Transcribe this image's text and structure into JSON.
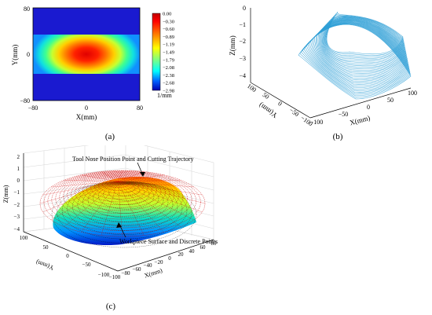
{
  "panels": {
    "a": {
      "caption": "(a)",
      "x_label": "X(mm)",
      "y_label": "Y(mm)",
      "x_ticks": [
        "−80",
        "0",
        "80"
      ],
      "y_ticks": [
        "80",
        "0",
        "−80"
      ],
      "colorbar_ticks": [
        "0.00",
        "−0.30",
        "−0.60",
        "−0.89",
        "−1.19",
        "−1.49",
        "−1.79",
        "−2.08",
        "−2.38",
        "−2.68",
        "−2.98"
      ],
      "colorbar_unit": "1/mm"
    },
    "b": {
      "caption": "(b)",
      "z_label": "Z(mm)",
      "x_label": "X(mm)",
      "y_label": "Y(mm)",
      "z_ticks": [
        "0",
        "−1",
        "−2",
        "−3",
        "−4"
      ],
      "x_ticks": [
        "−100",
        "−50",
        "0",
        "50",
        "100"
      ],
      "y_ticks": [
        "100",
        "50",
        "0",
        "−50",
        "−100"
      ]
    },
    "c": {
      "caption": "(c)",
      "z_label": "Z(mm)",
      "x_label": "X(mm)",
      "y_label": "Y(mm)",
      "z_ticks": [
        "2",
        "1",
        "0",
        "−1",
        "−2",
        "−3",
        "−4"
      ],
      "x_ticks": [
        "−100",
        "−80",
        "−60",
        "−40",
        "−20",
        "0",
        "20",
        "40",
        "60",
        "80"
      ],
      "y_ticks": [
        "100",
        "50",
        "0",
        "−50",
        "−100"
      ],
      "annotation_top": "Tool Nose Position Point and Cutting Trajectory",
      "annotation_bottom": "Workpiece Surface and Discrete Points"
    }
  },
  "colors": {
    "jet_max": "#ff0000",
    "jet_min": "#0000c0",
    "surface_line": "#2e9fd6",
    "trajectory": "#cc0000"
  },
  "chart_data": [
    {
      "type": "heatmap",
      "panel": "a",
      "xlabel": "X(mm)",
      "ylabel": "Y(mm)",
      "xlim": [
        -80,
        80
      ],
      "ylim": [
        -80,
        80
      ],
      "colorbar_range": [
        -2.98,
        0.0
      ],
      "colorbar_unit": "1/mm",
      "description_of_field": "curvature field: maximum 0.00 at center (0,0), decreasing radially to -2.98 near X=±60 across band Y in [-35, 35]; outside band blue"
    },
    {
      "type": "line",
      "panel": "b",
      "xlabel": "X(mm)",
      "ylabel": "Y(mm)",
      "zlabel": "Z(mm)",
      "xlim": [
        -100,
        100
      ],
      "ylim": [
        -100,
        100
      ],
      "zlim": [
        -4,
        0
      ]
    },
    {
      "type": "scatter",
      "panel": "c",
      "xlabel": "X(mm)",
      "ylabel": "Y(mm)",
      "zlabel": "Z(mm)",
      "xlim": [
        -100,
        80
      ],
      "ylim": [
        -100,
        100
      ],
      "zlim": [
        -4,
        2
      ]
    }
  ]
}
